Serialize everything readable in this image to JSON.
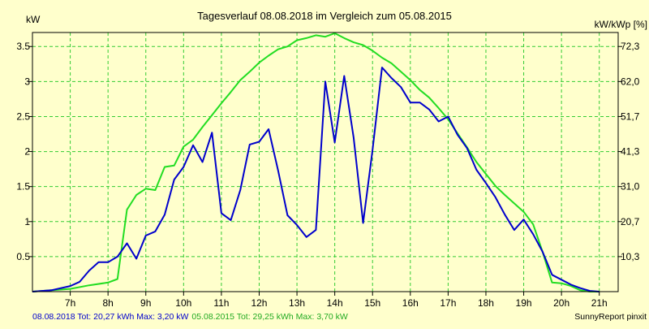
{
  "chart_data": {
    "type": "line",
    "title": "Tagesverlauf 08.08.2018 im Vergleich zum 05.08.2015",
    "ylabel": "kW",
    "y2label": "kW/kWp [%]",
    "xlim": [
      6.0,
      21.5
    ],
    "ylim": [
      0,
      3.7
    ],
    "grid": true,
    "x_ticks": [
      7,
      8,
      9,
      10,
      11,
      12,
      13,
      14,
      15,
      16,
      17,
      18,
      19,
      20,
      21
    ],
    "x_tick_labels": [
      "7h",
      "8h",
      "9h",
      "10h",
      "11h",
      "12h",
      "13h",
      "14h",
      "15h",
      "16h",
      "17h",
      "18h",
      "19h",
      "20h",
      "21h"
    ],
    "y_ticks": [
      0.5,
      1,
      1.5,
      2,
      2.5,
      3,
      3.5
    ],
    "y_tick_labels": [
      "0.5",
      "1",
      "1.5",
      "2",
      "2.5",
      "3",
      "3.5"
    ],
    "y2_tick_labels": [
      "10,3",
      "20,7",
      "31,0",
      "41,3",
      "51,7",
      "62,0",
      "72,3"
    ],
    "series": [
      {
        "name": "08.08.2018",
        "color": "#0000cc",
        "x": [
          6.0,
          6.5,
          7.0,
          7.25,
          7.5,
          7.75,
          8.0,
          8.25,
          8.5,
          8.75,
          9.0,
          9.25,
          9.5,
          9.75,
          10.0,
          10.25,
          10.5,
          10.75,
          11.0,
          11.25,
          11.5,
          11.75,
          12.0,
          12.25,
          12.5,
          12.75,
          13.0,
          13.25,
          13.5,
          13.75,
          14.0,
          14.25,
          14.5,
          14.75,
          15.0,
          15.25,
          15.5,
          15.75,
          16.0,
          16.25,
          16.5,
          16.75,
          17.0,
          17.25,
          17.5,
          17.75,
          18.0,
          18.25,
          18.5,
          18.75,
          19.0,
          19.25,
          19.5,
          19.75,
          20.0,
          20.25,
          20.5,
          20.75,
          21.0
        ],
        "values": [
          0.0,
          0.02,
          0.08,
          0.14,
          0.3,
          0.42,
          0.42,
          0.5,
          0.69,
          0.47,
          0.8,
          0.86,
          1.1,
          1.6,
          1.78,
          2.09,
          1.85,
          2.27,
          1.12,
          1.02,
          1.45,
          2.1,
          2.14,
          2.32,
          1.73,
          1.09,
          0.95,
          0.78,
          0.88,
          3.0,
          2.13,
          3.08,
          2.2,
          0.98,
          2.02,
          3.2,
          3.05,
          2.92,
          2.7,
          2.7,
          2.6,
          2.43,
          2.5,
          2.24,
          2.05,
          1.74,
          1.55,
          1.35,
          1.1,
          0.88,
          1.03,
          0.82,
          0.57,
          0.24,
          0.17,
          0.1,
          0.05,
          0.01,
          0.0
        ]
      },
      {
        "name": "05.08.2015",
        "color": "#22dd22",
        "x": [
          6.0,
          7.0,
          7.5,
          8.0,
          8.25,
          8.5,
          8.75,
          9.0,
          9.25,
          9.5,
          9.75,
          10.0,
          10.25,
          10.5,
          10.75,
          11.0,
          11.25,
          11.5,
          11.75,
          12.0,
          12.25,
          12.5,
          12.75,
          13.0,
          13.25,
          13.5,
          13.75,
          14.0,
          14.25,
          14.5,
          14.75,
          15.0,
          15.25,
          15.5,
          15.75,
          16.0,
          16.25,
          16.5,
          16.75,
          17.0,
          17.25,
          17.5,
          17.75,
          18.0,
          18.25,
          18.5,
          18.75,
          19.0,
          19.25,
          19.5,
          19.75,
          20.0,
          20.25,
          20.5,
          20.75,
          21.0
        ],
        "values": [
          0.0,
          0.04,
          0.09,
          0.13,
          0.18,
          1.17,
          1.38,
          1.47,
          1.45,
          1.78,
          1.8,
          2.07,
          2.17,
          2.35,
          2.52,
          2.69,
          2.85,
          3.02,
          3.14,
          3.27,
          3.37,
          3.46,
          3.5,
          3.59,
          3.62,
          3.66,
          3.64,
          3.69,
          3.62,
          3.56,
          3.52,
          3.44,
          3.34,
          3.26,
          3.14,
          3.02,
          2.88,
          2.77,
          2.62,
          2.46,
          2.26,
          2.06,
          1.85,
          1.68,
          1.51,
          1.38,
          1.26,
          1.14,
          0.96,
          0.57,
          0.13,
          0.12,
          0.08,
          0.02,
          0.0,
          0.0
        ]
      }
    ]
  },
  "footer": {
    "series1_summary": "08.08.2018 Tot: 20,27 kWh Max: 3,20 kW",
    "series2_summary": "05.08.2015 Tot: 29,25 kWh Max: 3,70 kW",
    "credit": "SunnyReport pinxit"
  }
}
